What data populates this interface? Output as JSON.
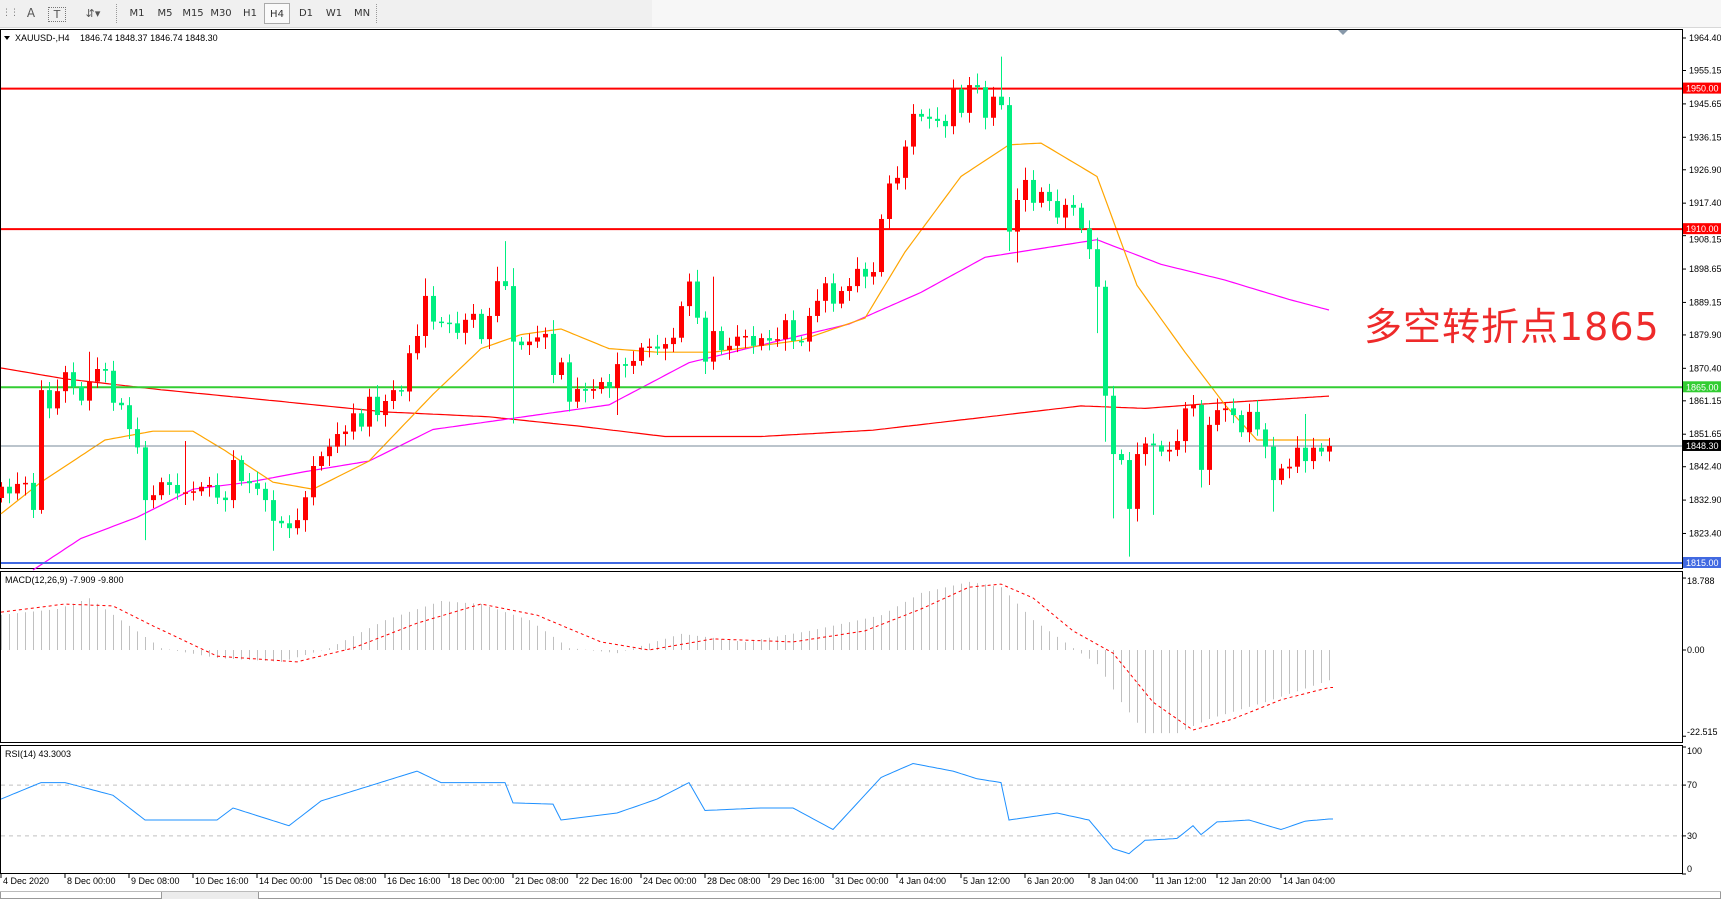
{
  "toolbar": {
    "icons": [
      "grid-icon",
      "text-icon",
      "text-label-icon",
      "arrows-icon"
    ],
    "text_icon_glyph": "A",
    "label_icon_glyph": "T",
    "periods": [
      "M1",
      "M5",
      "M15",
      "M30",
      "H1",
      "H4",
      "D1",
      "W1",
      "MN"
    ],
    "selected_period": "H4"
  },
  "chart_header": {
    "symbol": "XAUUSD-,H4",
    "ohlc": "1846.74 1848.37 1846.74 1848.30"
  },
  "annotation": "多空转折点1865",
  "macd_header": "MACD(12,26,9) -7.909 -9.800",
  "rsi_header": "RSI(14) 43.3003",
  "colors": {
    "bull": "#ff0000",
    "bear": "#00ee80",
    "ma_fast": "#ffa500",
    "ma_mid": "#ff00ff",
    "ma_slow": "#ff0000",
    "level_red": "#ff0000",
    "level_green": "#32cd32",
    "level_blue": "#4169e1",
    "current_price": "#778899",
    "macd_hist": "#c0c0c0",
    "macd_signal": "#ff0000",
    "rsi_line": "#1e90ff"
  },
  "chart_data": [
    {
      "type": "candlestick",
      "title": "XAUUSD-,H4",
      "ylim": [
        1814.15,
        1964.4
      ],
      "y_ticks": [
        "1964.40",
        "1955.15",
        "1945.65",
        "1936.15",
        "1926.90",
        "1917.40",
        "1908.15",
        "1898.65",
        "1889.15",
        "1879.90",
        "1870.40",
        "1861.15",
        "1851.65",
        "1842.40",
        "1832.90",
        "1823.40"
      ],
      "x_tick_labels": [
        "4 Dec 2020",
        "8 Dec 00:00",
        "9 Dec 08:00",
        "10 Dec 16:00",
        "14 Dec 00:00",
        "15 Dec 08:00",
        "16 Dec 16:00",
        "18 Dec 00:00",
        "21 Dec 08:00",
        "22 Dec 16:00",
        "24 Dec 00:00",
        "28 Dec 08:00",
        "29 Dec 16:00",
        "31 Dec 00:00",
        "4 Jan 04:00",
        "5 Jan 12:00",
        "6 Jan 20:00",
        "8 Jan 04:00",
        "11 Jan 12:00",
        "12 Jan 20:00",
        "14 Jan 04:00"
      ],
      "bars_per_x_tick": 8,
      "first_open": 1833.5,
      "close": [
        1836.7,
        1834.8,
        1837.5,
        1837.8,
        1830.1,
        1864.2,
        1859,
        1863.9,
        1869.3,
        1865.2,
        1861.2,
        1866.6,
        1870.2,
        1869.7,
        1860.6,
        1859.9,
        1853.1,
        1847.9,
        1832.9,
        1834.3,
        1838,
        1837.2,
        1834.8,
        1835.1,
        1835.4,
        1836.7,
        1837.2,
        1833.6,
        1832.9,
        1844.3,
        1838.3,
        1837.7,
        1836.1,
        1832.9,
        1827,
        1826.3,
        1824.9,
        1827.2,
        1833.7,
        1842.6,
        1845.4,
        1848.1,
        1851.7,
        1852.4,
        1857.6,
        1853.8,
        1862.3,
        1857.1,
        1861.1,
        1864.2,
        1863.8,
        1874.7,
        1879.6,
        1891,
        1883.7,
        1883.4,
        1883.2,
        1880.5,
        1884.2,
        1885.9,
        1878.7,
        1885.3,
        1895.2,
        1893.8,
        1878,
        1877,
        1878,
        1879.2,
        1880.2,
        1868.5,
        1872.1,
        1860.9,
        1864.5,
        1864,
        1864.5,
        1866.5,
        1864.8,
        1871.6,
        1871.1,
        1872.5,
        1876.3,
        1876.6,
        1876,
        1877.3,
        1879.1,
        1888.1,
        1895.1,
        1884.8,
        1872.3,
        1881,
        1875.6,
        1876.8,
        1879.4,
        1879.6,
        1876.8,
        1879,
        1878.3,
        1878.7,
        1884.1,
        1878.2,
        1878,
        1885.3,
        1889.6,
        1894.6,
        1888.8,
        1892.4,
        1893.8,
        1898.7,
        1896.5,
        1897.8,
        1912.9,
        1923,
        1924.6,
        1933.5,
        1942.8,
        1942,
        1941.4,
        1940.8,
        1939.3,
        1949.8,
        1943.1,
        1951,
        1950.4,
        1941.7,
        1947.7,
        1945.3,
        1909.3,
        1918.3,
        1924,
        1917.5,
        1920.6,
        1918,
        1913.3,
        1916.9,
        1916.1,
        1910.2,
        1904.3,
        1893.6,
        1862.6,
        1846,
        1844.3,
        1830.4,
        1846,
        1849,
        1848.5,
        1846.7,
        1847.2,
        1849.7,
        1859,
        1860,
        1841.5,
        1854.3,
        1858.5,
        1859,
        1857.1,
        1852.2,
        1858,
        1853,
        1848.1,
        1838.6,
        1841.9,
        1842.4,
        1847.8,
        1844,
        1847.8,
        1846.7,
        1848.3
      ],
      "notable_extremes": [
        {
          "bar": 5,
          "high": 1867,
          "low": 1829
        },
        {
          "bar": 11,
          "high": 1875.1
        },
        {
          "bar": 18,
          "low": 1821.5
        },
        {
          "bar": 23,
          "high": 1849.7
        },
        {
          "bar": 34,
          "low": 1818.5
        },
        {
          "bar": 53,
          "high": 1896
        },
        {
          "bar": 62,
          "high": 1899.3
        },
        {
          "bar": 63,
          "high": 1906.6,
          "low": 1892.7
        },
        {
          "bar": 64,
          "high": 1898.9,
          "low": 1854.7
        },
        {
          "bar": 69,
          "high": 1884.1
        },
        {
          "bar": 77,
          "low": 1857.1
        },
        {
          "bar": 88,
          "low": 1868.8
        },
        {
          "bar": 89,
          "high": 1896.5
        },
        {
          "bar": 125,
          "high": 1959.1
        },
        {
          "bar": 126,
          "low": 1903.8
        },
        {
          "bar": 127,
          "low": 1900.5
        },
        {
          "bar": 128,
          "high": 1927.5
        },
        {
          "bar": 137,
          "low": 1880.4
        },
        {
          "bar": 138,
          "low": 1849.5
        },
        {
          "bar": 139,
          "low": 1827.7
        },
        {
          "bar": 141,
          "low": 1816.8
        },
        {
          "bar": 142,
          "low": 1826.8
        },
        {
          "bar": 144,
          "low": 1828.7
        },
        {
          "bar": 150,
          "high": 1861.4,
          "low": 1836.5
        },
        {
          "bar": 151,
          "low": 1837.2
        },
        {
          "bar": 159,
          "low": 1829.6
        },
        {
          "bar": 163,
          "high": 1857.4
        }
      ],
      "moving_averages": {
        "fast": [
          [
            0,
            1829
          ],
          [
            5,
            1838
          ],
          [
            13,
            1850
          ],
          [
            19,
            1852.5
          ],
          [
            24,
            1852.5
          ],
          [
            28,
            1847
          ],
          [
            34,
            1838
          ],
          [
            39,
            1836
          ],
          [
            46,
            1844
          ],
          [
            54,
            1863
          ],
          [
            60,
            1876
          ],
          [
            65,
            1880
          ],
          [
            70,
            1881.6
          ],
          [
            76,
            1876
          ],
          [
            82,
            1875
          ],
          [
            89,
            1875
          ],
          [
            100,
            1878.4
          ],
          [
            108,
            1884.7
          ],
          [
            113,
            1903.5
          ],
          [
            120,
            1925
          ],
          [
            126,
            1934
          ],
          [
            130,
            1934.5
          ],
          [
            137,
            1925
          ],
          [
            142,
            1894
          ],
          [
            148,
            1875
          ],
          [
            153,
            1860
          ],
          [
            157,
            1850
          ],
          [
            161,
            1850
          ],
          [
            166,
            1850
          ]
        ],
        "mid": [
          [
            4,
            1813
          ],
          [
            10,
            1822
          ],
          [
            17,
            1828
          ],
          [
            24,
            1836
          ],
          [
            31,
            1838
          ],
          [
            38,
            1841
          ],
          [
            46,
            1844
          ],
          [
            54,
            1853
          ],
          [
            65,
            1856.5
          ],
          [
            76,
            1860
          ],
          [
            86,
            1872
          ],
          [
            95,
            1877
          ],
          [
            106,
            1883
          ],
          [
            115,
            1892
          ],
          [
            123,
            1902
          ],
          [
            137,
            1907
          ],
          [
            145,
            1900
          ],
          [
            153,
            1895.5
          ],
          [
            161,
            1890
          ],
          [
            166,
            1887
          ]
        ],
        "slow": [
          [
            0,
            1870.5
          ],
          [
            8,
            1867.4
          ],
          [
            20,
            1864.3
          ],
          [
            34,
            1861.2
          ],
          [
            48,
            1858
          ],
          [
            61,
            1856.6
          ],
          [
            72,
            1854
          ],
          [
            83,
            1851
          ],
          [
            95,
            1851
          ],
          [
            109,
            1852.8
          ],
          [
            123,
            1856.5
          ],
          [
            135,
            1859.7
          ],
          [
            143,
            1859
          ],
          [
            150,
            1860.2
          ],
          [
            166,
            1862.5
          ]
        ]
      },
      "horizontal_levels": [
        {
          "price": 1950.0,
          "label": "1950.00",
          "color": "#ff0000"
        },
        {
          "price": 1910.0,
          "label": "1910.00",
          "color": "#ff0000"
        },
        {
          "price": 1865.0,
          "label": "1865.00",
          "color": "#32cd32"
        },
        {
          "price": 1815.0,
          "label": "1815.00",
          "color": "#4169e1"
        }
      ],
      "current_price": {
        "price": 1848.3,
        "label": "1848.30"
      }
    },
    {
      "type": "bar+line",
      "title": "MACD(12,26,9) -7.909 -9.800",
      "ylim": [
        -22.515,
        18.788
      ],
      "y_ticks": [
        "18.788",
        "0.00",
        "-22.515"
      ],
      "histogram": [
        [
          0,
          9.2
        ],
        [
          7,
          10.7
        ],
        [
          11,
          13.5
        ],
        [
          16,
          6.3
        ],
        [
          20,
          0.5
        ],
        [
          27,
          -2.1
        ],
        [
          35,
          -3.1
        ],
        [
          41,
          0.5
        ],
        [
          48,
          7.8
        ],
        [
          55,
          12.8
        ],
        [
          60,
          12
        ],
        [
          66,
          7.8
        ],
        [
          71,
          0.5
        ],
        [
          77,
          -0.8
        ],
        [
          85,
          4.2
        ],
        [
          93,
          2.1
        ],
        [
          101,
          5
        ],
        [
          110,
          9.1
        ],
        [
          115,
          14.9
        ],
        [
          121,
          17.8
        ],
        [
          125,
          16.4
        ],
        [
          129,
          7.8
        ],
        [
          134,
          0.5
        ],
        [
          137,
          -3.7
        ],
        [
          140,
          -13.6
        ],
        [
          143,
          -21.7
        ],
        [
          147,
          -21.7
        ],
        [
          151,
          -18
        ],
        [
          158,
          -13.6
        ],
        [
          166,
          -7.909
        ]
      ],
      "signal": [
        [
          0,
          9.9
        ],
        [
          8,
          12
        ],
        [
          14,
          11.5
        ],
        [
          19,
          6.3
        ],
        [
          27,
          -1.6
        ],
        [
          37,
          -3.1
        ],
        [
          44,
          0.5
        ],
        [
          52,
          7
        ],
        [
          60,
          12
        ],
        [
          67,
          9.1
        ],
        [
          75,
          2.1
        ],
        [
          81,
          0
        ],
        [
          89,
          2.9
        ],
        [
          99,
          2.1
        ],
        [
          108,
          5
        ],
        [
          115,
          10.7
        ],
        [
          121,
          16.4
        ],
        [
          125,
          17.2
        ],
        [
          129,
          13.6
        ],
        [
          134,
          5
        ],
        [
          139,
          -0.8
        ],
        [
          144,
          -13.6
        ],
        [
          149,
          -20.9
        ],
        [
          154,
          -18
        ],
        [
          160,
          -13
        ],
        [
          166,
          -9.8
        ]
      ]
    },
    {
      "type": "line",
      "title": "RSI(14) 43.3003",
      "ylim": [
        0,
        100
      ],
      "y_ticks": [
        "100",
        "70",
        "30",
        "0"
      ],
      "levels": [
        70,
        30
      ],
      "values": [
        [
          0,
          59
        ],
        [
          5,
          72
        ],
        [
          8,
          72
        ],
        [
          14,
          62
        ],
        [
          18,
          42.5
        ],
        [
          27,
          42.5
        ],
        [
          29,
          52
        ],
        [
          36,
          38
        ],
        [
          40,
          57.5
        ],
        [
          52,
          81
        ],
        [
          55,
          72
        ],
        [
          63,
          72
        ],
        [
          64,
          56
        ],
        [
          69,
          55
        ],
        [
          70,
          42.5
        ],
        [
          77,
          48
        ],
        [
          82,
          59
        ],
        [
          86,
          72
        ],
        [
          88,
          50
        ],
        [
          95,
          52
        ],
        [
          99,
          52
        ],
        [
          104,
          35
        ],
        [
          110,
          76
        ],
        [
          114,
          87
        ],
        [
          119,
          81
        ],
        [
          122,
          75
        ],
        [
          125,
          72
        ],
        [
          126,
          42.5
        ],
        [
          132,
          48
        ],
        [
          136,
          42.5
        ],
        [
          139,
          20
        ],
        [
          141,
          16
        ],
        [
          143,
          26.5
        ],
        [
          147,
          28
        ],
        [
          149,
          38
        ],
        [
          150,
          31
        ],
        [
          152,
          41
        ],
        [
          156,
          42.5
        ],
        [
          160,
          35
        ],
        [
          163,
          41.6
        ],
        [
          166,
          43.3003
        ]
      ]
    }
  ]
}
